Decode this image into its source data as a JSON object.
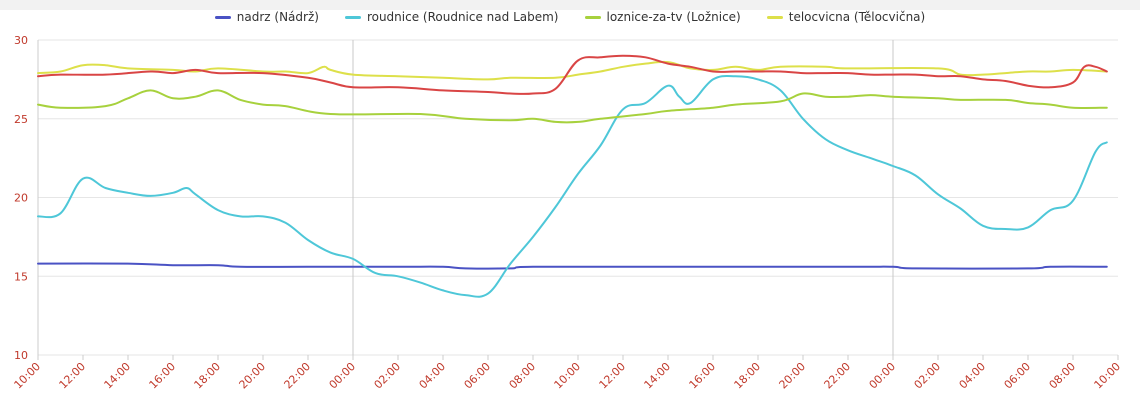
{
  "chart_data": {
    "type": "line",
    "title": "",
    "xlabel": "",
    "ylabel": "",
    "ylim": [
      10,
      30
    ],
    "yticks": [
      10,
      15,
      20,
      25,
      30
    ],
    "x_range_hours": [
      0,
      48
    ],
    "x_tick_labels": [
      "10:00",
      "12:00",
      "14:00",
      "16:00",
      "18:00",
      "20:00",
      "22:00",
      "00:00",
      "02:00",
      "04:00",
      "06:00",
      "08:00",
      "10:00",
      "12:00",
      "14:00",
      "16:00",
      "18:00",
      "20:00",
      "22:00",
      "00:00",
      "02:00",
      "04:00",
      "06:00",
      "08:00",
      "10:00"
    ],
    "day_separators_hours": [
      14,
      38
    ],
    "legend_position": "top-center",
    "grid": true,
    "series": [
      {
        "name": "nadrz (Nádrž)",
        "color": "#4a52c4",
        "points": [
          [
            0,
            15.8
          ],
          [
            4,
            15.8
          ],
          [
            6,
            15.7
          ],
          [
            8,
            15.7
          ],
          [
            9,
            15.6
          ],
          [
            12,
            15.6
          ],
          [
            16,
            15.6
          ],
          [
            18,
            15.6
          ],
          [
            19,
            15.5
          ],
          [
            21,
            15.5
          ],
          [
            22,
            15.6
          ],
          [
            28,
            15.6
          ],
          [
            36,
            15.6
          ],
          [
            38,
            15.6
          ],
          [
            39,
            15.5
          ],
          [
            44,
            15.5
          ],
          [
            45,
            15.6
          ],
          [
            47.5,
            15.6
          ]
        ]
      },
      {
        "name": "roudnice (Roudnice nad Labem)",
        "color": "#4ec7d8",
        "points": [
          [
            0,
            18.8
          ],
          [
            1,
            19.0
          ],
          [
            2,
            21.2
          ],
          [
            3,
            20.6
          ],
          [
            4,
            20.3
          ],
          [
            5,
            20.1
          ],
          [
            6,
            20.3
          ],
          [
            6.6,
            20.6
          ],
          [
            7,
            20.2
          ],
          [
            8,
            19.2
          ],
          [
            9,
            18.8
          ],
          [
            10,
            18.8
          ],
          [
            11,
            18.4
          ],
          [
            12,
            17.3
          ],
          [
            13,
            16.5
          ],
          [
            14,
            16.1
          ],
          [
            15,
            15.2
          ],
          [
            16,
            15.0
          ],
          [
            17,
            14.6
          ],
          [
            18,
            14.1
          ],
          [
            19,
            13.8
          ],
          [
            20,
            13.9
          ],
          [
            21,
            15.8
          ],
          [
            22,
            17.5
          ],
          [
            23,
            19.4
          ],
          [
            24,
            21.5
          ],
          [
            25,
            23.3
          ],
          [
            26,
            25.6
          ],
          [
            27,
            26.0
          ],
          [
            28,
            27.1
          ],
          [
            28.5,
            26.4
          ],
          [
            29,
            26.0
          ],
          [
            30,
            27.5
          ],
          [
            31,
            27.7
          ],
          [
            32,
            27.5
          ],
          [
            33,
            26.8
          ],
          [
            34,
            25.0
          ],
          [
            35,
            23.7
          ],
          [
            36,
            23.0
          ],
          [
            37,
            22.5
          ],
          [
            38,
            22.0
          ],
          [
            39,
            21.4
          ],
          [
            40,
            20.2
          ],
          [
            41,
            19.3
          ],
          [
            42,
            18.2
          ],
          [
            43,
            18.0
          ],
          [
            44,
            18.1
          ],
          [
            45,
            19.2
          ],
          [
            46,
            19.8
          ],
          [
            47,
            22.9
          ],
          [
            47.5,
            23.5
          ]
        ]
      },
      {
        "name": "loznice-za-tv (Ložnice)",
        "color": "#a7d13d",
        "points": [
          [
            0,
            25.9
          ],
          [
            1,
            25.7
          ],
          [
            3,
            25.8
          ],
          [
            4,
            26.3
          ],
          [
            5,
            26.8
          ],
          [
            6,
            26.3
          ],
          [
            7,
            26.4
          ],
          [
            8,
            26.8
          ],
          [
            9,
            26.2
          ],
          [
            10,
            25.9
          ],
          [
            11,
            25.8
          ],
          [
            13,
            25.3
          ],
          [
            17,
            25.3
          ],
          [
            19,
            25.0
          ],
          [
            21,
            24.9
          ],
          [
            22,
            25.0
          ],
          [
            23,
            24.8
          ],
          [
            24,
            24.8
          ],
          [
            25,
            25.0
          ],
          [
            27,
            25.3
          ],
          [
            28,
            25.5
          ],
          [
            30,
            25.7
          ],
          [
            31,
            25.9
          ],
          [
            33,
            26.1
          ],
          [
            34,
            26.6
          ],
          [
            35,
            26.4
          ],
          [
            36,
            26.4
          ],
          [
            37,
            26.5
          ],
          [
            38,
            26.4
          ],
          [
            40,
            26.3
          ],
          [
            41,
            26.2
          ],
          [
            43,
            26.2
          ],
          [
            44,
            26.0
          ],
          [
            45,
            25.9
          ],
          [
            46,
            25.7
          ],
          [
            47.5,
            25.7
          ]
        ]
      },
      {
        "name": "telocvicna (Tělocvična)",
        "color": "#dde04a",
        "points": [
          [
            0,
            27.9
          ],
          [
            1,
            28.0
          ],
          [
            2,
            28.4
          ],
          [
            3,
            28.4
          ],
          [
            4,
            28.2
          ],
          [
            6,
            28.1
          ],
          [
            7,
            28.0
          ],
          [
            8,
            28.2
          ],
          [
            10,
            28.0
          ],
          [
            11,
            28.0
          ],
          [
            12,
            27.9
          ],
          [
            12.7,
            28.3
          ],
          [
            13,
            28.1
          ],
          [
            14,
            27.8
          ],
          [
            16,
            27.7
          ],
          [
            18,
            27.6
          ],
          [
            20,
            27.5
          ],
          [
            21,
            27.6
          ],
          [
            23,
            27.6
          ],
          [
            24,
            27.8
          ],
          [
            25,
            28.0
          ],
          [
            26,
            28.3
          ],
          [
            27,
            28.5
          ],
          [
            28,
            28.6
          ],
          [
            29,
            28.2
          ],
          [
            30,
            28.1
          ],
          [
            31,
            28.3
          ],
          [
            32,
            28.1
          ],
          [
            33,
            28.3
          ],
          [
            35,
            28.3
          ],
          [
            36,
            28.2
          ],
          [
            40,
            28.2
          ],
          [
            41,
            27.8
          ],
          [
            42,
            27.8
          ],
          [
            43,
            27.9
          ],
          [
            44,
            28.0
          ],
          [
            45,
            28.0
          ],
          [
            46,
            28.1
          ],
          [
            47.5,
            28.0
          ]
        ]
      },
      {
        "name": "",
        "color": "#d94545",
        "points": [
          [
            0,
            27.7
          ],
          [
            1,
            27.8
          ],
          [
            3,
            27.8
          ],
          [
            5,
            28.0
          ],
          [
            6,
            27.9
          ],
          [
            7,
            28.1
          ],
          [
            8,
            27.9
          ],
          [
            10,
            27.9
          ],
          [
            12,
            27.6
          ],
          [
            13,
            27.3
          ],
          [
            14,
            27.0
          ],
          [
            16,
            27.0
          ],
          [
            18,
            26.8
          ],
          [
            20,
            26.7
          ],
          [
            21,
            26.6
          ],
          [
            22,
            26.6
          ],
          [
            23,
            26.9
          ],
          [
            24,
            28.7
          ],
          [
            25,
            28.9
          ],
          [
            26,
            29.0
          ],
          [
            27,
            28.9
          ],
          [
            28,
            28.5
          ],
          [
            29,
            28.3
          ],
          [
            30,
            28.0
          ],
          [
            31,
            28.0
          ],
          [
            32,
            28.0
          ],
          [
            33,
            28.0
          ],
          [
            34,
            27.9
          ],
          [
            35,
            27.9
          ],
          [
            36,
            27.9
          ],
          [
            37,
            27.8
          ],
          [
            38,
            27.8
          ],
          [
            39,
            27.8
          ],
          [
            40,
            27.7
          ],
          [
            41,
            27.7
          ],
          [
            42,
            27.5
          ],
          [
            43,
            27.4
          ],
          [
            44,
            27.1
          ],
          [
            45,
            27.0
          ],
          [
            46,
            27.3
          ],
          [
            46.5,
            28.3
          ],
          [
            47,
            28.3
          ],
          [
            47.5,
            28.0
          ]
        ]
      }
    ]
  }
}
